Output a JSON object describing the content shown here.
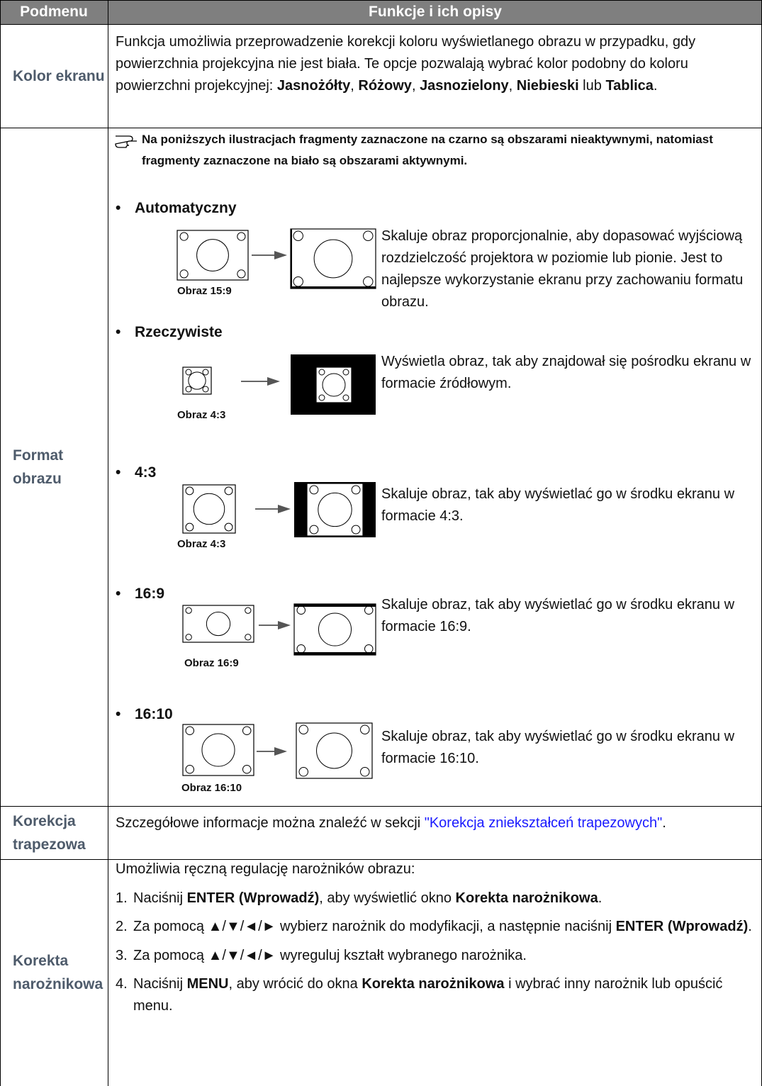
{
  "table": {
    "header": [
      "Podmenu",
      "Funkcje i ich opisy"
    ],
    "rows": [
      {
        "submenu": "Kolor ekranu",
        "description": [
          "Funkcja umożliwia przeprowadzenie korekcji koloru wyświetlanego obrazu w przypadku, gdy powierzchnia projekcyjna nie jest biała. Te opcje pozwalają wybrać kolor podobny do koloru powierzchni projekcyjnej: ",
          {
            "bold": "Jasnożółty"
          },
          ", ",
          {
            "bold": "Różowy"
          },
          ", ",
          {
            "bold": "Jasnozielony"
          },
          ", ",
          {
            "bold": "Niebieski"
          },
          " lub ",
          {
            "bold": "Tablica"
          },
          "."
        ]
      },
      {
        "submenu": "Format obrazu",
        "note": "Na poniższych ilustracjach fragmenty zaznaczone na czarno są obszarami nieaktywnymi, natomiast fragmenty zaznaczone na biało są obszarami aktywnymi.",
        "items": [
          {
            "heading": "Automatyczny",
            "caption": "Obraz 15:9",
            "text": "Skaluje obraz proporcjonalnie, aby dopasować wyjściową rozdzielczość projektora w poziomie lub pionie. Jest to najlepsze wykorzystanie ekranu przy zachowaniu formatu obrazu."
          },
          {
            "heading": "Rzeczywiste",
            "caption": "Obraz 4:3",
            "text": "Wyświetla obraz, tak aby znajdował się pośrodku ekranu w formacie źródłowym."
          },
          {
            "heading": "4:3",
            "caption": "Obraz 4:3",
            "text": "Skaluje obraz, tak aby wyświetlać go w środku ekranu w formacie 4:3."
          },
          {
            "heading": "16:9",
            "caption": "Obraz 16:9",
            "text": "Skaluje obraz, tak aby wyświetlać go w środku ekranu w formacie 16:9."
          },
          {
            "heading": "16:10",
            "caption": "Obraz 16:10",
            "text": "Skaluje obraz, tak aby wyświetlać go w środku ekranu w formacie 16:10."
          }
        ]
      },
      {
        "submenu": "Korekcja trapezowa",
        "description": [
          "Szczegółowe informacje można znaleźć w sekcji ",
          {
            "link": "\"Korekcja zniekształceń trapezowych\""
          },
          "."
        ]
      },
      {
        "submenu": "Korekta narożnikowa",
        "intro": "Umożliwia ręczną regulację narożników obrazu:",
        "steps": [
          {
            "number": "1.",
            "text": [
              "Naciśnij ",
              {
                "bold": "ENTER (Wprowadź)"
              },
              ", aby wyświetlić okno ",
              {
                "bold": "Korekta narożnikowa"
              },
              "."
            ]
          },
          {
            "number": "2.",
            "text": [
              "Za pomocą ▲/▼/◄/► wybierz narożnik do modyfikacji, a następnie naciśnij ",
              {
                "bold": "ENTER (Wprowadź)"
              },
              "."
            ]
          },
          {
            "number": "3.",
            "text": [
              "Za pomocą ▲/▼/◄/► wyreguluj kształt wybranego narożnika."
            ]
          },
          {
            "number": "4.",
            "text": [
              "Naciśnij ",
              {
                "bold": "MENU"
              },
              ", aby wrócić do okna ",
              {
                "bold": "Korekta narożnikowa"
              },
              " i wybrać inny narożnik lub opuścić menu."
            ]
          }
        ]
      }
    ]
  }
}
